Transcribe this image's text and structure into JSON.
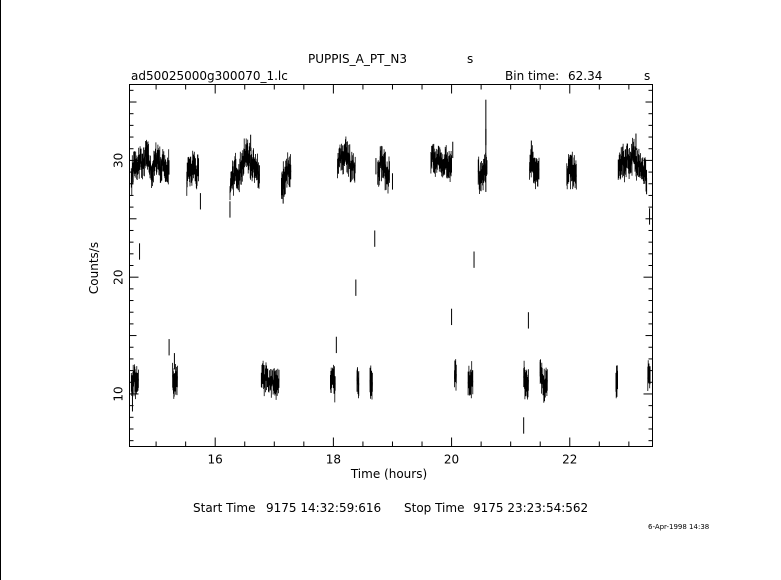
{
  "header": {
    "object": "PUPPIS_A_PT_N3",
    "object_unit": "s",
    "file": "ad50025000g300070_1.lc",
    "bin_label": "Bin time:",
    "bin_value": "62.34",
    "bin_unit": "s"
  },
  "footer": {
    "start_label": "Start Time",
    "start_value": "9175 14:32:59:616",
    "stop_label": "Stop Time",
    "stop_value": "9175 23:23:54:562",
    "stamp": "6-Apr-1998 14:38"
  },
  "colors": {
    "ink": "#000000",
    "background": "#ffffff"
  },
  "chart_data": {
    "type": "scatter",
    "xlabel": "Time (hours)",
    "ylabel": "Counts/s",
    "xlim": [
      14.55,
      23.4
    ],
    "ylim": [
      5.5,
      36.5
    ],
    "xticks": [
      16,
      18,
      20,
      22
    ],
    "yticks": [
      10,
      20,
      30
    ],
    "x_minor_step": 0.5,
    "y_minor_step": 1,
    "grid": false,
    "style": "error bars (vertical) with connecting trace",
    "segments": [
      {
        "x": [
          14.58,
          14.63,
          14.68,
          14.73,
          14.78,
          14.83,
          14.88,
          14.93,
          14.98,
          15.03,
          15.08,
          15.13,
          15.18,
          15.22
        ],
        "y": [
          28.5,
          29.8,
          29.1,
          30.2,
          29.4,
          30.6,
          29.7,
          28.9,
          29.8,
          30.3,
          29.2,
          29.9,
          29.0,
          29.4
        ]
      },
      {
        "x": [
          15.52,
          15.56,
          15.6,
          15.64,
          15.68,
          15.72
        ],
        "y": [
          28.0,
          29.3,
          29.0,
          29.8,
          28.6,
          29.2
        ]
      },
      {
        "x": [
          16.25,
          16.3,
          16.35,
          16.4,
          16.45,
          16.5,
          16.55,
          16.6,
          16.65,
          16.7,
          16.75
        ],
        "y": [
          27.2,
          28.5,
          29.2,
          28.8,
          29.6,
          30.2,
          30.7,
          29.4,
          30.0,
          29.1,
          28.8
        ]
      },
      {
        "x": [
          17.12,
          17.16,
          17.2,
          17.24,
          17.28
        ],
        "y": [
          27.6,
          28.4,
          28.9,
          29.3,
          29.0
        ]
      },
      {
        "x": [
          18.07,
          18.12,
          18.17,
          18.22,
          18.27,
          18.32,
          18.37
        ],
        "y": [
          29.3,
          30.4,
          29.8,
          30.6,
          29.9,
          29.2,
          29.6
        ]
      },
      {
        "x": [
          18.75,
          18.8,
          18.85,
          18.9,
          18.95
        ],
        "y": [
          28.9,
          30.1,
          29.5,
          28.7,
          29.0
        ]
      },
      {
        "x": [
          19.65,
          19.7,
          19.75,
          19.8,
          19.85,
          19.9,
          19.95,
          20.0
        ],
        "y": [
          29.8,
          30.5,
          29.6,
          30.2,
          29.3,
          30.1,
          29.2,
          29.7
        ]
      },
      {
        "x": [
          20.45,
          20.5,
          20.55,
          20.6
        ],
        "y": [
          29.0,
          28.3,
          29.2,
          29.4
        ]
      },
      {
        "x": [
          21.32,
          21.36,
          21.4,
          21.44,
          21.48
        ],
        "y": [
          29.1,
          29.9,
          29.4,
          28.8,
          29.3
        ]
      },
      {
        "x": [
          21.95,
          21.99,
          22.03,
          22.07,
          22.11
        ],
        "y": [
          28.8,
          29.5,
          28.9,
          29.2,
          28.6
        ]
      },
      {
        "x": [
          22.82,
          22.87,
          22.92,
          22.97,
          23.02,
          23.07,
          23.12,
          23.17,
          23.22,
          23.27,
          23.3
        ],
        "y": [
          29.2,
          30.1,
          29.6,
          30.4,
          29.8,
          30.6,
          29.5,
          30.2,
          29.4,
          29.0,
          28.5
        ]
      },
      {
        "x": [
          14.58,
          14.62,
          14.66,
          14.7
        ],
        "y": [
          11.0,
          11.4,
          10.9,
          11.3
        ]
      },
      {
        "x": [
          15.28,
          15.32,
          15.36
        ],
        "y": [
          11.6,
          11.0,
          11.5
        ]
      },
      {
        "x": [
          16.78,
          16.84,
          16.9,
          16.96,
          17.02,
          17.08
        ],
        "y": [
          11.2,
          11.5,
          10.8,
          11.4,
          11.0,
          11.3
        ]
      },
      {
        "x": [
          17.95,
          17.99,
          18.03
        ],
        "y": [
          11.0,
          11.4,
          10.9
        ]
      },
      {
        "x": [
          18.4,
          18.43
        ],
        "y": [
          11.1,
          10.9
        ]
      },
      {
        "x": [
          18.62,
          18.66
        ],
        "y": [
          11.2,
          11.0
        ]
      },
      {
        "x": [
          20.05,
          20.08
        ],
        "y": [
          11.3,
          11.7
        ]
      },
      {
        "x": [
          20.28,
          20.32,
          20.36
        ],
        "y": [
          10.9,
          11.3,
          11.0
        ]
      },
      {
        "x": [
          21.22,
          21.26,
          21.3
        ],
        "y": [
          11.4,
          10.8,
          11.2
        ]
      },
      {
        "x": [
          21.5,
          21.54,
          21.58,
          21.62
        ],
        "y": [
          11.8,
          11.1,
          10.6,
          11.2
        ]
      },
      {
        "x": [
          22.78,
          22.81
        ],
        "y": [
          11.0,
          11.2
        ]
      },
      {
        "x": [
          23.32,
          23.36
        ],
        "y": [
          11.3,
          11.6
        ]
      }
    ],
    "points": [
      {
        "x": 14.72,
        "y": 22.2
      },
      {
        "x": 15.22,
        "y": 14.0
      },
      {
        "x": 15.31,
        "y": 12.8
      },
      {
        "x": 15.75,
        "y": 26.5
      },
      {
        "x": 16.25,
        "y": 25.8
      },
      {
        "x": 16.6,
        "y": 31.5
      },
      {
        "x": 17.15,
        "y": 27.0
      },
      {
        "x": 18.05,
        "y": 14.2
      },
      {
        "x": 18.38,
        "y": 19.1
      },
      {
        "x": 18.7,
        "y": 23.3
      },
      {
        "x": 18.72,
        "y": 29.5
      },
      {
        "x": 19.0,
        "y": 28.2
      },
      {
        "x": 20.0,
        "y": 16.6
      },
      {
        "x": 20.02,
        "y": 30.9
      },
      {
        "x": 20.38,
        "y": 21.5
      },
      {
        "x": 20.58,
        "y": 32.0
      },
      {
        "x": 21.22,
        "y": 7.3
      },
      {
        "x": 21.3,
        "y": 16.3
      },
      {
        "x": 21.35,
        "y": 31.0
      },
      {
        "x": 21.5,
        "y": 12.2
      },
      {
        "x": 23.12,
        "y": 31.6
      },
      {
        "x": 23.3,
        "y": 27.8
      },
      {
        "x": 23.35,
        "y": 25.2
      },
      {
        "x": 14.6,
        "y": 9.2
      }
    ]
  }
}
